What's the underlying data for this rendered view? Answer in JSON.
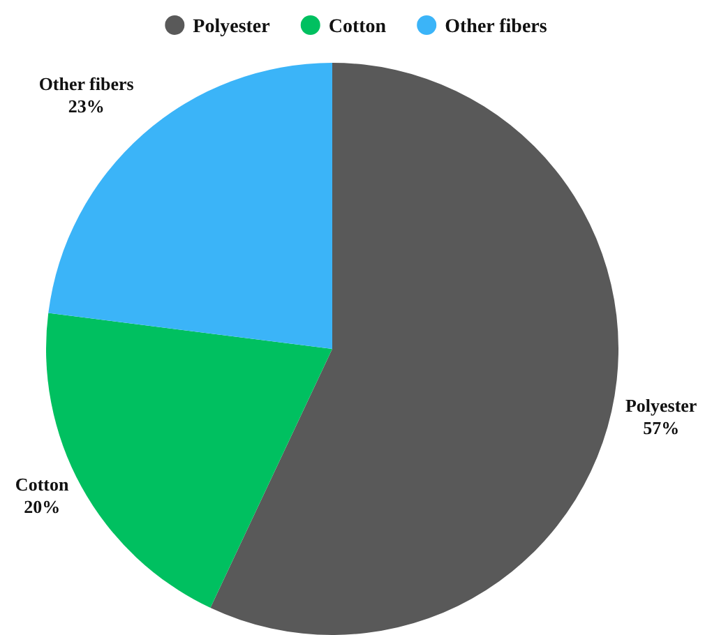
{
  "chart_data": {
    "type": "pie",
    "categories": [
      "Polyester",
      "Cotton",
      "Other fibers"
    ],
    "values": [
      57,
      20,
      23
    ],
    "colors": [
      "#595959",
      "#00c060",
      "#3bb4f8"
    ],
    "value_labels": [
      "57%",
      "20%",
      "23%"
    ],
    "legend": "top"
  }
}
